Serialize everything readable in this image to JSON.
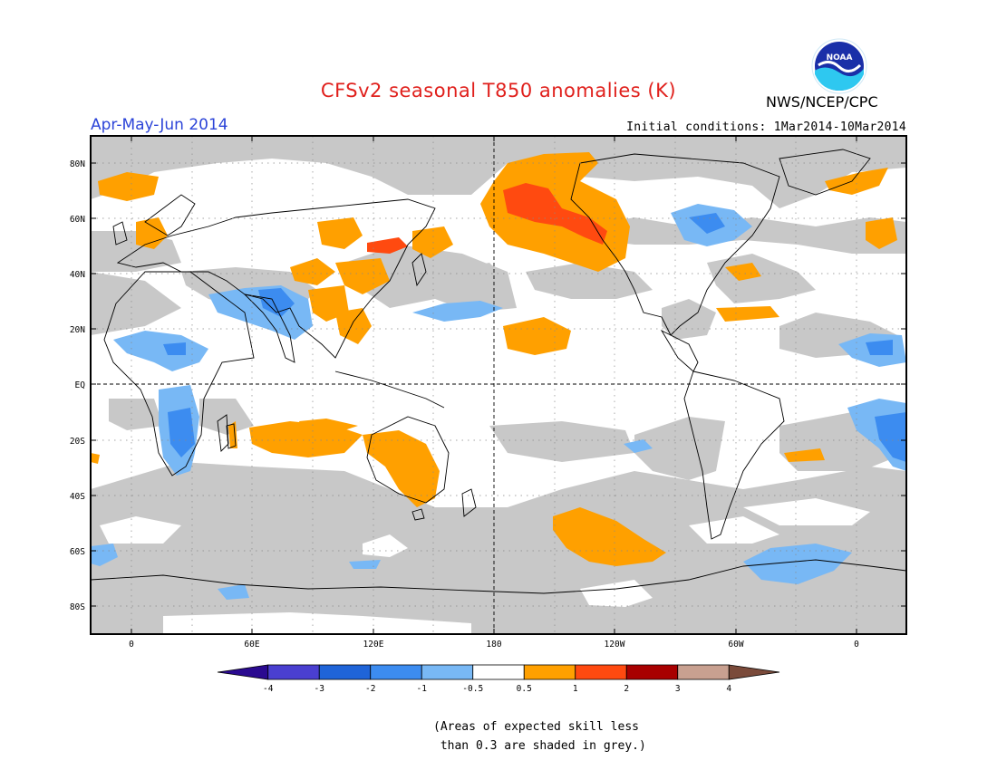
{
  "title": "CFSv2 seasonal T850 anomalies (K)",
  "season": "Apr-May-Jun 2014",
  "initial_conditions": "Initial conditions: 1Mar2014-10Mar2014",
  "agency": "NWS/NCEP/CPC",
  "logo_text": "NOAA",
  "lat_labels": [
    "80N",
    "60N",
    "40N",
    "20N",
    "EQ",
    "20S",
    "40S",
    "60S",
    "80S"
  ],
  "lon_labels": [
    "0",
    "60E",
    "120E",
    "180",
    "120W",
    "60W",
    "0"
  ],
  "colorbar": {
    "tick_labels": [
      "-4",
      "-3",
      "-2",
      "-1",
      "-0.5",
      "0.5",
      "1",
      "2",
      "3",
      "4"
    ],
    "colors": [
      "#2a0a90",
      "#4a3fd0",
      "#1f64d8",
      "#3c8cf0",
      "#78b8f5",
      "#ffffff",
      "#ffa000",
      "#ff4a10",
      "#a80000",
      "#c8a090",
      "#7a4a3a"
    ]
  },
  "skill_note": [
    "(Areas of expected skill less",
    " than 0.3 are shaded in grey.)"
  ],
  "colors": {
    "title": "#e0201c",
    "season": "#2c44d8",
    "skill_grey": "#c8c8c8",
    "warm": "#ffa000",
    "warm_strong": "#ff4a10",
    "cool": "#6aaaf0",
    "cool_strong": "#3c80e0"
  }
}
